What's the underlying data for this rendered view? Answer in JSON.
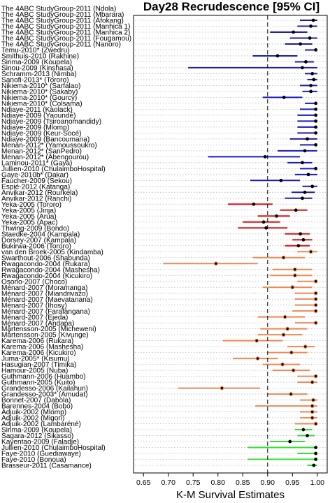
{
  "chart_data": {
    "type": "forest",
    "title": "Day28 Recrudescence [95% CI]",
    "xlabel": "K-M Survival Estimates",
    "xlim": [
      0.63,
      1.02
    ],
    "xticks": [
      "0.65",
      "0.70",
      "0.75",
      "0.80",
      "0.85",
      "0.90",
      "0.95",
      "1.00"
    ],
    "reference_line": 0.9,
    "colors": {
      "blue": "#1a1abf",
      "red": "#dd1111",
      "orange": "#ee8855",
      "green": "#33dd33",
      "point": "#000000"
    },
    "rows": [
      {
        "label": "The 4ABC StudyGroup-2011 (Ndola)",
        "est": 0.997,
        "lo": 0.94,
        "hi": 1.0,
        "color": "blue",
        "ring": false
      },
      {
        "label": "The 4ABC StudyGroup-2011 (Mbarara)",
        "est": 0.987,
        "lo": 0.95,
        "hi": 1.0,
        "color": "blue",
        "ring": false
      },
      {
        "label": "The 4ABC StudyGroup-2011 (Afokang)",
        "est": 0.992,
        "lo": 0.965,
        "hi": 1.0,
        "color": "blue",
        "ring": false
      },
      {
        "label": "The 4ABC StudyGroup-2011 (Manhica 1)",
        "est": 0.987,
        "lo": 0.96,
        "hi": 1.0,
        "color": "blue",
        "ring": false
      },
      {
        "label": "The 4ABC StudyGroup-2011 (Manhica 2)",
        "est": 0.952,
        "lo": 0.905,
        "hi": 0.98,
        "color": "blue",
        "ring": false
      },
      {
        "label": "The 4ABC StudyGroup-2011 (Fougamou)",
        "est": 0.985,
        "lo": 0.945,
        "hi": 1.0,
        "color": "blue",
        "ring": false
      },
      {
        "label": "The 4ABC StudyGroup-2011 (Nanoro)",
        "est": 0.966,
        "lo": 0.935,
        "hi": 0.99,
        "color": "blue",
        "ring": false
      },
      {
        "label": "Temu-2010* (Zwedru)",
        "est": 0.997,
        "lo": 0.975,
        "hi": 1.0,
        "color": "blue",
        "ring": false
      },
      {
        "label": "Smithuis-2010 (Rakhine)",
        "est": 0.92,
        "lo": 0.87,
        "hi": 0.96,
        "color": "blue",
        "ring": false
      },
      {
        "label": "Sirima-2009 (Koupela)",
        "est": 0.977,
        "lo": 0.955,
        "hi": 0.993,
        "color": "blue",
        "ring": false
      },
      {
        "label": "Sinou-2009 (Kinshasa)",
        "est": 0.97,
        "lo": 0.74,
        "hi": 1.0,
        "color": "blue",
        "ring": false
      },
      {
        "label": "Schramm-2013 (Nimba)",
        "est": 0.99,
        "lo": 0.975,
        "hi": 1.0,
        "color": "blue",
        "ring": false
      },
      {
        "label": "Sanofi-2013* (Tororo)",
        "est": 0.993,
        "lo": 0.98,
        "hi": 1.0,
        "color": "blue",
        "ring": false
      },
      {
        "label": "Nikiema-2010* (Sarfalao)",
        "est": 0.987,
        "lo": 0.965,
        "hi": 1.0,
        "color": "blue",
        "ring": false
      },
      {
        "label": "Nikiema-2010* (Sakaby)",
        "est": 0.987,
        "lo": 0.97,
        "hi": 1.0,
        "color": "blue",
        "ring": false
      },
      {
        "label": "Nikiema-2010* (Gourcy)",
        "est": 0.933,
        "lo": 0.89,
        "hi": 0.97,
        "color": "blue",
        "ring": false
      },
      {
        "label": "Nikiema-2010* (Colsama)",
        "est": 0.997,
        "lo": 0.975,
        "hi": 1.0,
        "color": "blue",
        "ring": false
      },
      {
        "label": "Ndiaye-2011 (Kaolack)",
        "est": 0.997,
        "lo": 0.965,
        "hi": 1.0,
        "color": "blue",
        "ring": false
      },
      {
        "label": "Ndiaye-2009 (Yaoundé)",
        "est": 0.997,
        "lo": 0.96,
        "hi": 1.0,
        "color": "blue",
        "ring": false
      },
      {
        "label": "Ndiaye-2009 (Tsiroanomandidy)",
        "est": 0.997,
        "lo": 0.96,
        "hi": 1.0,
        "color": "blue",
        "ring": false
      },
      {
        "label": "Ndiaye-2009 (Mlomp)",
        "est": 0.997,
        "lo": 0.96,
        "hi": 1.0,
        "color": "blue",
        "ring": false
      },
      {
        "label": "Ndiaye-2009 (Keur-Socé)",
        "est": 0.997,
        "lo": 0.96,
        "hi": 1.0,
        "color": "blue",
        "ring": false
      },
      {
        "label": "Ndiaye-2009 (Bancoumana)",
        "est": 0.98,
        "lo": 0.945,
        "hi": 1.0,
        "color": "blue",
        "ring": false
      },
      {
        "label": "Menan-2012* (Yamoussoukro)",
        "est": 0.997,
        "lo": 0.965,
        "hi": 1.0,
        "color": "blue",
        "ring": false
      },
      {
        "label": "Menan-2012* (SanPedro)",
        "est": 0.975,
        "lo": 0.92,
        "hi": 1.0,
        "color": "blue",
        "ring": false
      },
      {
        "label": "Menan-2012* (Abengourou)",
        "est": 0.895,
        "lo": 0.78,
        "hi": 0.965,
        "color": "blue",
        "ring": false
      },
      {
        "label": "Laminou-2011* (Gaya)",
        "est": 0.97,
        "lo": 0.94,
        "hi": 0.99,
        "color": "blue",
        "ring": false
      },
      {
        "label": "Jullien-2010 (ChulaimboHospital)",
        "est": 0.997,
        "lo": 0.965,
        "hi": 1.0,
        "color": "blue",
        "ring": false
      },
      {
        "label": "Gaye-2010b* (Dakar)",
        "est": 0.982,
        "lo": 0.955,
        "hi": 1.0,
        "color": "blue",
        "ring": false
      },
      {
        "label": "Faucher-2009 (Sekou)",
        "est": 0.927,
        "lo": 0.865,
        "hi": 0.965,
        "color": "blue",
        "ring": false
      },
      {
        "label": "Espié-2012 (Katanga)",
        "est": 0.99,
        "lo": 0.97,
        "hi": 1.0,
        "color": "blue",
        "ring": false
      },
      {
        "label": "Anvikar-2012 (Rourkela)",
        "est": 0.975,
        "lo": 0.948,
        "hi": 0.995,
        "color": "blue",
        "ring": false
      },
      {
        "label": "Anvikar-2012 (Ranchi)",
        "est": 0.97,
        "lo": 0.935,
        "hi": 0.99,
        "color": "blue",
        "ring": false
      },
      {
        "label": "Yeka-2005 (Tororo)",
        "est": 0.872,
        "lo": 0.82,
        "hi": 0.91,
        "color": "red",
        "ring": false
      },
      {
        "label": "Yeka-2005 (Jinja)",
        "est": 0.957,
        "lo": 0.925,
        "hi": 0.98,
        "color": "red",
        "ring": false
      },
      {
        "label": "Yeka-2005 (Arua)",
        "est": 0.918,
        "lo": 0.88,
        "hi": 0.945,
        "color": "red",
        "ring": false
      },
      {
        "label": "Yeka-2005 (Apac)",
        "est": 0.892,
        "lo": 0.85,
        "hi": 0.925,
        "color": "red",
        "ring": false
      },
      {
        "label": "Thwing-2009 (Bondo)",
        "est": 0.897,
        "lo": 0.84,
        "hi": 0.94,
        "color": "red",
        "ring": false
      },
      {
        "label": "Staedke-2004 (Kampala)",
        "est": 0.966,
        "lo": 0.935,
        "hi": 0.985,
        "color": "red",
        "ring": false
      },
      {
        "label": "Dorsey-2007 (Kampala)",
        "est": 0.972,
        "lo": 0.95,
        "hi": 0.99,
        "color": "red",
        "ring": false
      },
      {
        "label": "Bukirwa-2006 (Tororo)",
        "est": 0.962,
        "lo": 0.935,
        "hi": 0.985,
        "color": "red",
        "ring": false
      },
      {
        "label": "van den Broek-2005 (Kindamba)",
        "est": 0.987,
        "lo": 0.96,
        "hi": 1.0,
        "color": "orange",
        "ring": true
      },
      {
        "label": "Swarthout-2006 (Shabunda)",
        "est": 0.932,
        "lo": 0.87,
        "hi": 0.975,
        "color": "orange",
        "ring": true
      },
      {
        "label": "Rwagacondo-2004 (Rukara)",
        "est": 0.796,
        "lo": 0.69,
        "hi": 0.88,
        "color": "orange",
        "ring": true
      },
      {
        "label": "Rwagacondo-2004 (Mashesha)",
        "est": 0.955,
        "lo": 0.91,
        "hi": 0.99,
        "color": "orange",
        "ring": true
      },
      {
        "label": "Rwagacondo-2004 (Kicukiro)",
        "est": 0.955,
        "lo": 0.905,
        "hi": 0.99,
        "color": "orange",
        "ring": true
      },
      {
        "label": "Osorio-2007 (Choco)",
        "est": 0.997,
        "lo": 0.96,
        "hi": 1.0,
        "color": "orange",
        "ring": true
      },
      {
        "label": "Ménard-2007 (Moramanga)",
        "est": 0.95,
        "lo": 0.89,
        "hi": 0.99,
        "color": "orange",
        "ring": true
      },
      {
        "label": "Ménard-2007 (Miandrivazo)",
        "est": 0.997,
        "lo": 0.955,
        "hi": 1.0,
        "color": "orange",
        "ring": true
      },
      {
        "label": "Ménard-2007 (Maevatanana)",
        "est": 0.997,
        "lo": 0.955,
        "hi": 1.0,
        "color": "orange",
        "ring": true
      },
      {
        "label": "Ménard-2007 (Ihosy)",
        "est": 0.997,
        "lo": 0.955,
        "hi": 1.0,
        "color": "orange",
        "ring": true
      },
      {
        "label": "Ménard-2007 (Farafangana)",
        "est": 0.997,
        "lo": 0.95,
        "hi": 1.0,
        "color": "orange",
        "ring": true
      },
      {
        "label": "Ménard-2007 (Ejeda)",
        "est": 0.935,
        "lo": 0.88,
        "hi": 0.975,
        "color": "orange",
        "ring": true
      },
      {
        "label": "Ménard-2007 (Andapa)",
        "est": 0.997,
        "lo": 0.955,
        "hi": 1.0,
        "color": "orange",
        "ring": true
      },
      {
        "label": "Mårtensson-2005 (Micheweni)",
        "est": 0.94,
        "lo": 0.885,
        "hi": 0.98,
        "color": "orange",
        "ring": true
      },
      {
        "label": "Mårtensson-2005 (Kivunge)",
        "est": 0.932,
        "lo": 0.88,
        "hi": 0.97,
        "color": "orange",
        "ring": true
      },
      {
        "label": "Karema-2006 (Rukara)",
        "est": 0.878,
        "lo": 0.81,
        "hi": 0.93,
        "color": "orange",
        "ring": true
      },
      {
        "label": "Karema-2006 (Mashesha)",
        "est": 0.976,
        "lo": 0.94,
        "hi": 0.995,
        "color": "orange",
        "ring": true
      },
      {
        "label": "Karema-2006 (Kicukiro)",
        "est": 0.948,
        "lo": 0.9,
        "hi": 0.98,
        "color": "orange",
        "ring": true
      },
      {
        "label": "Juma-2005* (Kisumu)",
        "est": 0.88,
        "lo": 0.83,
        "hi": 0.92,
        "color": "orange",
        "ring": true
      },
      {
        "label": "Hasugian-2007 (Timika)",
        "est": 0.93,
        "lo": 0.89,
        "hi": 0.965,
        "color": "orange",
        "ring": true
      },
      {
        "label": "Hamour-2005 (Nuba)",
        "est": 0.952,
        "lo": 0.91,
        "hi": 0.985,
        "color": "orange",
        "ring": true
      },
      {
        "label": "Guthmann-2006 (Huambo)",
        "est": 0.997,
        "lo": 0.96,
        "hi": 1.0,
        "color": "orange",
        "ring": true
      },
      {
        "label": "Guthmann-2005 (Kuito)",
        "est": 0.99,
        "lo": 0.96,
        "hi": 1.0,
        "color": "orange",
        "ring": true
      },
      {
        "label": "Grandesso-2006 (Kailahun)",
        "est": 0.808,
        "lo": 0.72,
        "hi": 0.885,
        "color": "orange",
        "ring": true
      },
      {
        "label": "Grandesso-2003* (Amudat)",
        "est": 0.947,
        "lo": 0.9,
        "hi": 0.98,
        "color": "orange",
        "ring": true
      },
      {
        "label": "Bonnet-2007 (Dabola)",
        "est": 0.992,
        "lo": 0.965,
        "hi": 1.0,
        "color": "orange",
        "ring": true
      },
      {
        "label": "Barennes-2004 (Bobo)",
        "est": 0.99,
        "lo": 0.875,
        "hi": 1.0,
        "color": "orange",
        "ring": true
      },
      {
        "label": "Adjuik-2002 (Mlomp)",
        "est": 0.99,
        "lo": 0.965,
        "hi": 1.0,
        "color": "orange",
        "ring": true
      },
      {
        "label": "Adjuik-2002 (Migori)",
        "est": 0.99,
        "lo": 0.965,
        "hi": 1.0,
        "color": "orange",
        "ring": true
      },
      {
        "label": "Adjuik-2002 (Lambaréné)",
        "est": 0.997,
        "lo": 0.955,
        "hi": 1.0,
        "color": "orange",
        "ring": true
      },
      {
        "label": "Sirima-2009 (Koupela)",
        "est": 0.972,
        "lo": 0.955,
        "hi": 0.99,
        "color": "green",
        "ring": false
      },
      {
        "label": "Sagara-2012 (Sikasso)",
        "est": 0.98,
        "lo": 0.96,
        "hi": 0.995,
        "color": "green",
        "ring": false
      },
      {
        "label": "Kayentao-2009 (Faladje)",
        "est": 0.945,
        "lo": 0.905,
        "hi": 0.975,
        "color": "green",
        "ring": false
      },
      {
        "label": "Jullien-2010 (ChulaimboHospital)",
        "est": 0.997,
        "lo": 0.86,
        "hi": 1.0,
        "color": "green",
        "ring": false
      },
      {
        "label": "Faye-2010 (Guediawaye)",
        "est": 0.997,
        "lo": 0.96,
        "hi": 1.0,
        "color": "green",
        "ring": false
      },
      {
        "label": "Faye-2010 (Bonoua)",
        "est": 0.997,
        "lo": 0.86,
        "hi": 1.0,
        "color": "green",
        "ring": false
      },
      {
        "label": "Brasseur-2011 (Casamance)",
        "est": 0.993,
        "lo": 0.98,
        "hi": 1.0,
        "color": "green",
        "ring": false
      }
    ]
  }
}
